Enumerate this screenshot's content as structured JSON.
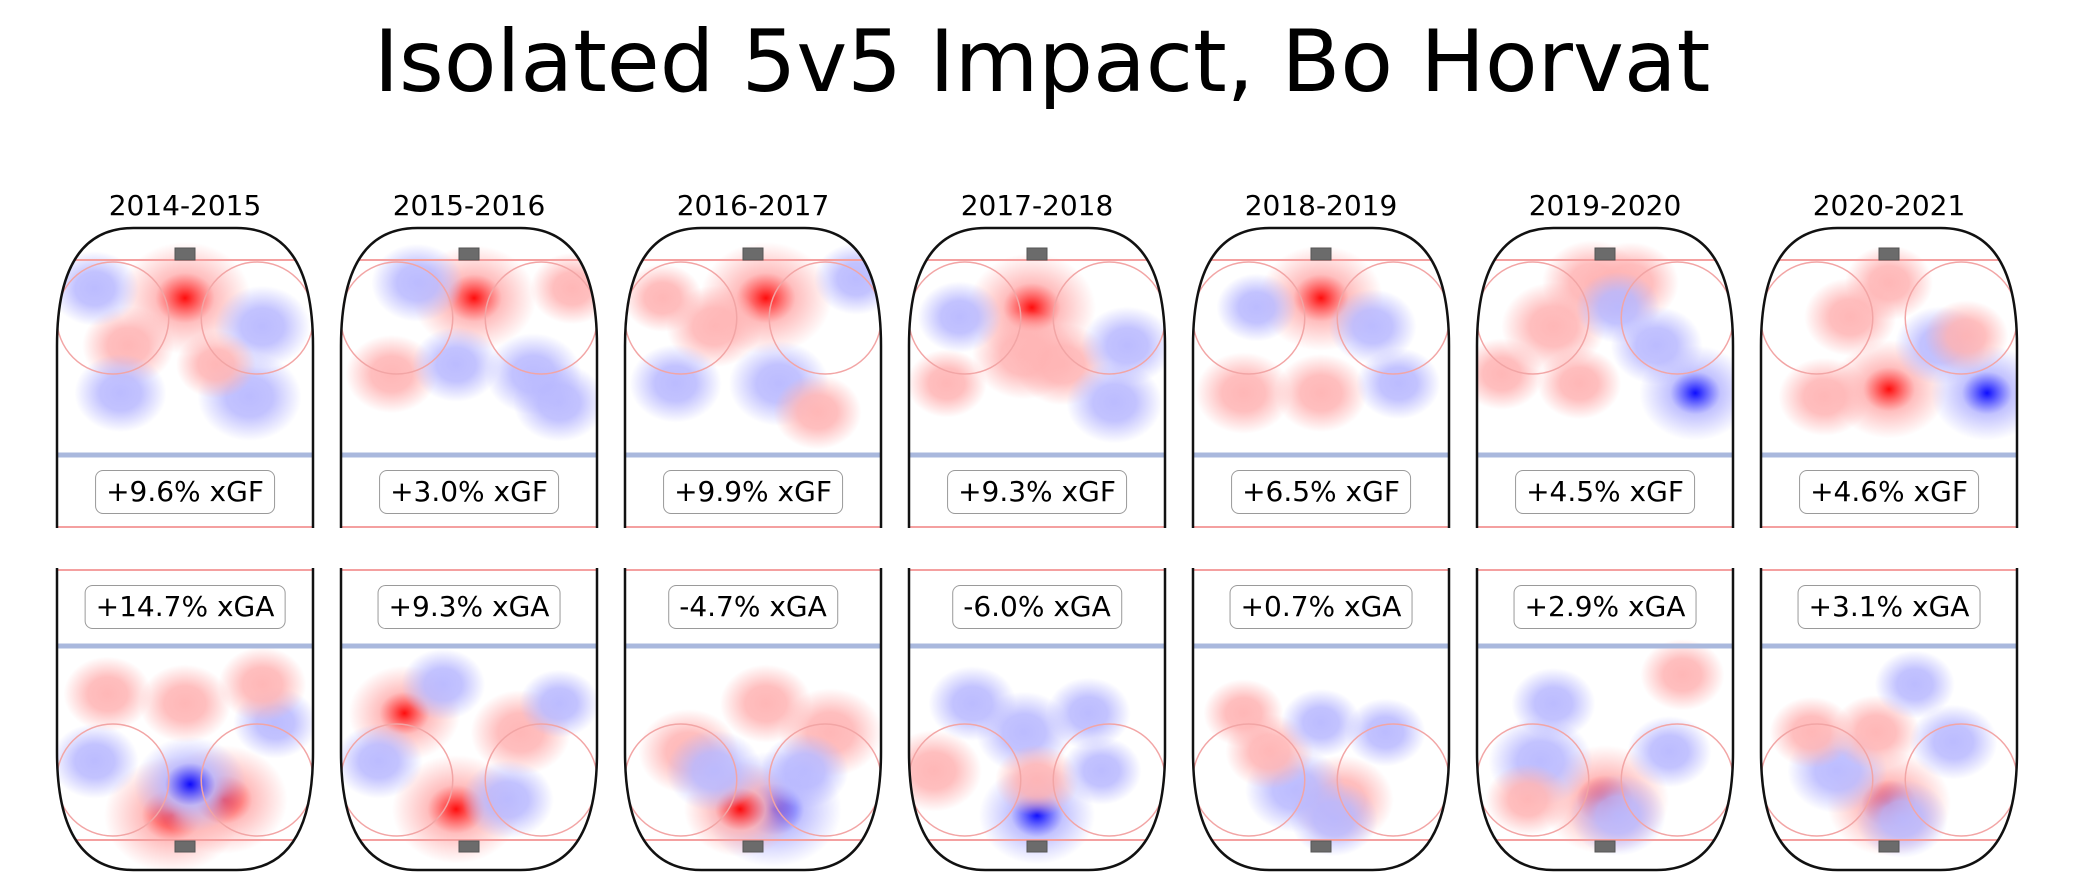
{
  "title": "Isolated 5v5 Impact, Bo Horvat",
  "chart_data": {
    "type": "heatmap",
    "title": "Isolated 5v5 Impact, Bo Horvat",
    "description": "Small multiples of offensive-zone (xGF, top) and defensive-zone (xGA, bottom) shot-rate impact heatmaps per season; red = above league average, blue = below.",
    "colormap": {
      "positive": "#ff0000",
      "negative": "#0000ff",
      "neutral": "#ffffff"
    },
    "panels": [
      {
        "season": "2014-2015",
        "xgf": "+9.6% xGF",
        "xga": "+14.7% xGA",
        "xgf_value": 9.6,
        "xga_value": 14.7,
        "top_hotspots": [
          [
            0.5,
            0.2,
            0.95
          ],
          [
            0.28,
            0.45,
            0.45
          ],
          [
            0.15,
            0.15,
            -0.4
          ],
          [
            0.8,
            0.35,
            -0.5
          ],
          [
            0.75,
            0.72,
            -0.6
          ],
          [
            0.25,
            0.7,
            -0.45
          ],
          [
            0.62,
            0.55,
            0.3
          ]
        ],
        "bottom_hotspots": [
          [
            0.45,
            0.88,
            1.0
          ],
          [
            0.65,
            0.8,
            0.9
          ],
          [
            0.52,
            0.72,
            -0.7
          ],
          [
            0.5,
            0.3,
            0.45
          ],
          [
            0.2,
            0.25,
            0.4
          ],
          [
            0.15,
            0.6,
            -0.4
          ],
          [
            0.85,
            0.4,
            -0.35
          ],
          [
            0.8,
            0.2,
            0.4
          ]
        ]
      },
      {
        "season": "2015-2016",
        "xgf": "+3.0% xGF",
        "xga": "+9.3% xGA",
        "xgf_value": 3.0,
        "xga_value": 9.3,
        "top_hotspots": [
          [
            0.52,
            0.2,
            0.85
          ],
          [
            0.2,
            0.6,
            0.45
          ],
          [
            0.3,
            0.12,
            -0.45
          ],
          [
            0.75,
            0.6,
            -0.5
          ],
          [
            0.45,
            0.55,
            -0.4
          ],
          [
            0.9,
            0.15,
            0.35
          ],
          [
            0.85,
            0.75,
            -0.45
          ]
        ],
        "bottom_hotspots": [
          [
            0.45,
            0.85,
            0.9
          ],
          [
            0.25,
            0.35,
            0.7
          ],
          [
            0.7,
            0.45,
            0.55
          ],
          [
            0.65,
            0.8,
            -0.45
          ],
          [
            0.4,
            0.2,
            -0.35
          ],
          [
            0.15,
            0.6,
            -0.4
          ],
          [
            0.85,
            0.3,
            -0.3
          ]
        ]
      },
      {
        "season": "2016-2017",
        "xgf": "+9.9% xGF",
        "xga": "-4.7% xGA",
        "xgf_value": 9.9,
        "xga_value": -4.7,
        "top_hotspots": [
          [
            0.55,
            0.2,
            0.95
          ],
          [
            0.35,
            0.35,
            0.5
          ],
          [
            0.9,
            0.1,
            -0.35
          ],
          [
            0.2,
            0.65,
            -0.45
          ],
          [
            0.6,
            0.65,
            -0.55
          ],
          [
            0.75,
            0.8,
            0.4
          ],
          [
            0.15,
            0.2,
            0.3
          ]
        ],
        "bottom_hotspots": [
          [
            0.58,
            0.85,
            -1.0
          ],
          [
            0.45,
            0.85,
            0.7
          ],
          [
            0.25,
            0.55,
            0.55
          ],
          [
            0.55,
            0.3,
            0.45
          ],
          [
            0.8,
            0.45,
            0.6
          ],
          [
            0.35,
            0.65,
            -0.5
          ],
          [
            0.7,
            0.65,
            -0.4
          ]
        ]
      },
      {
        "season": "2017-2018",
        "xgf": "+9.3% xGF",
        "xga": "-6.0% xGA",
        "xgf_value": 9.3,
        "xga_value": -6.0,
        "top_hotspots": [
          [
            0.48,
            0.25,
            0.9
          ],
          [
            0.45,
            0.5,
            0.6
          ],
          [
            0.6,
            0.55,
            0.5
          ],
          [
            0.2,
            0.3,
            -0.35
          ],
          [
            0.85,
            0.45,
            -0.45
          ],
          [
            0.8,
            0.75,
            -0.5
          ],
          [
            0.15,
            0.65,
            0.3
          ]
        ],
        "bottom_hotspots": [
          [
            0.5,
            0.88,
            -0.75
          ],
          [
            0.1,
            0.65,
            0.5
          ],
          [
            0.45,
            0.45,
            -0.5
          ],
          [
            0.25,
            0.3,
            -0.4
          ],
          [
            0.7,
            0.35,
            -0.35
          ],
          [
            0.5,
            0.7,
            0.35
          ],
          [
            0.75,
            0.65,
            -0.3
          ]
        ]
      },
      {
        "season": "2018-2019",
        "xgf": "+6.5% xGF",
        "xga": "+0.7% xGA",
        "xgf_value": 6.5,
        "xga_value": 0.7,
        "top_hotspots": [
          [
            0.5,
            0.2,
            0.85
          ],
          [
            0.2,
            0.7,
            0.5
          ],
          [
            0.5,
            0.7,
            0.45
          ],
          [
            0.7,
            0.35,
            -0.4
          ],
          [
            0.25,
            0.25,
            -0.3
          ],
          [
            0.8,
            0.65,
            -0.35
          ]
        ],
        "bottom_hotspots": [
          [
            0.58,
            0.8,
            0.6
          ],
          [
            0.4,
            0.75,
            -0.55
          ],
          [
            0.3,
            0.55,
            0.4
          ],
          [
            0.5,
            0.4,
            -0.3
          ],
          [
            0.2,
            0.35,
            0.3
          ],
          [
            0.75,
            0.45,
            -0.3
          ],
          [
            0.55,
            0.9,
            -0.4
          ]
        ]
      },
      {
        "season": "2019-2020",
        "xgf": "+4.5% xGF",
        "xga": "+2.9% xGA",
        "xgf_value": 4.5,
        "xga_value": 2.9,
        "top_hotspots": [
          [
            0.3,
            0.35,
            0.6
          ],
          [
            0.45,
            0.12,
            0.55
          ],
          [
            0.6,
            0.12,
            0.5
          ],
          [
            0.85,
            0.7,
            -0.7
          ],
          [
            0.7,
            0.45,
            -0.45
          ],
          [
            0.55,
            0.25,
            -0.35
          ],
          [
            0.4,
            0.65,
            0.35
          ],
          [
            0.1,
            0.6,
            0.35
          ]
        ],
        "bottom_hotspots": [
          [
            0.5,
            0.8,
            0.9
          ],
          [
            0.25,
            0.6,
            -0.6
          ],
          [
            0.55,
            0.88,
            -0.5
          ],
          [
            0.75,
            0.55,
            -0.35
          ],
          [
            0.3,
            0.3,
            -0.35
          ],
          [
            0.8,
            0.15,
            0.35
          ],
          [
            0.2,
            0.8,
            0.35
          ]
        ]
      },
      {
        "season": "2020-2021",
        "xgf": "+4.6% xGF",
        "xga": "+3.1% xGA",
        "xgf_value": 4.6,
        "xga_value": 3.1,
        "top_hotspots": [
          [
            0.35,
            0.3,
            0.45
          ],
          [
            0.5,
            0.68,
            0.75
          ],
          [
            0.25,
            0.72,
            0.45
          ],
          [
            0.88,
            0.7,
            -0.7
          ],
          [
            0.7,
            0.45,
            -0.45
          ],
          [
            0.8,
            0.4,
            0.35
          ],
          [
            0.5,
            0.12,
            0.4
          ]
        ],
        "bottom_hotspots": [
          [
            0.5,
            0.82,
            0.85
          ],
          [
            0.3,
            0.65,
            -0.55
          ],
          [
            0.45,
            0.45,
            0.4
          ],
          [
            0.2,
            0.45,
            0.35
          ],
          [
            0.75,
            0.5,
            -0.4
          ],
          [
            0.55,
            0.9,
            -0.45
          ],
          [
            0.6,
            0.2,
            -0.3
          ]
        ]
      }
    ]
  }
}
